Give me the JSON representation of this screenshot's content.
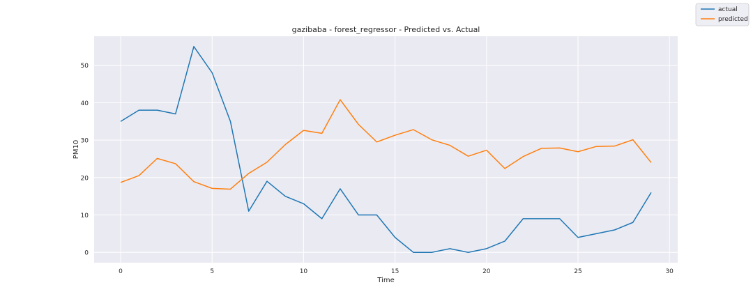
{
  "chart_data": {
    "type": "line",
    "title": "gazibaba - forest_regressor - Predicted vs. Actual",
    "xlabel": "Time",
    "ylabel": "PM10",
    "xlim": [
      -1.45,
      30.45
    ],
    "ylim": [
      -2.75,
      57.75
    ],
    "xticks": [
      0,
      5,
      10,
      15,
      20,
      25,
      30
    ],
    "yticks": [
      0,
      10,
      20,
      30,
      40,
      50
    ],
    "grid": true,
    "legend_position": "top-right (outside plot)",
    "background": "#eaeaf2",
    "x": [
      0,
      1,
      2,
      3,
      4,
      5,
      6,
      7,
      8,
      9,
      10,
      11,
      12,
      13,
      14,
      15,
      16,
      17,
      18,
      19,
      20,
      21,
      22,
      23,
      24,
      25,
      26,
      27,
      28,
      29
    ],
    "series": [
      {
        "name": "actual",
        "color": "#1f77b4",
        "values": [
          35,
          38,
          38,
          37,
          55,
          48,
          35,
          11,
          19,
          15,
          13,
          9,
          17,
          10,
          10,
          4,
          0,
          0,
          1,
          0,
          1,
          3,
          9,
          9,
          9,
          4,
          5,
          6,
          8,
          16
        ]
      },
      {
        "name": "predicted",
        "color": "#ff7f0e",
        "values": [
          18.7,
          20.5,
          25.1,
          23.7,
          18.9,
          17.1,
          16.9,
          21.1,
          24.1,
          28.8,
          32.6,
          31.8,
          40.8,
          34.2,
          29.5,
          31.3,
          32.8,
          30.1,
          28.6,
          25.7,
          27.3,
          22.4,
          25.6,
          27.8,
          27.9,
          26.9,
          28.3,
          28.4,
          30.1,
          24.0
        ]
      }
    ]
  }
}
